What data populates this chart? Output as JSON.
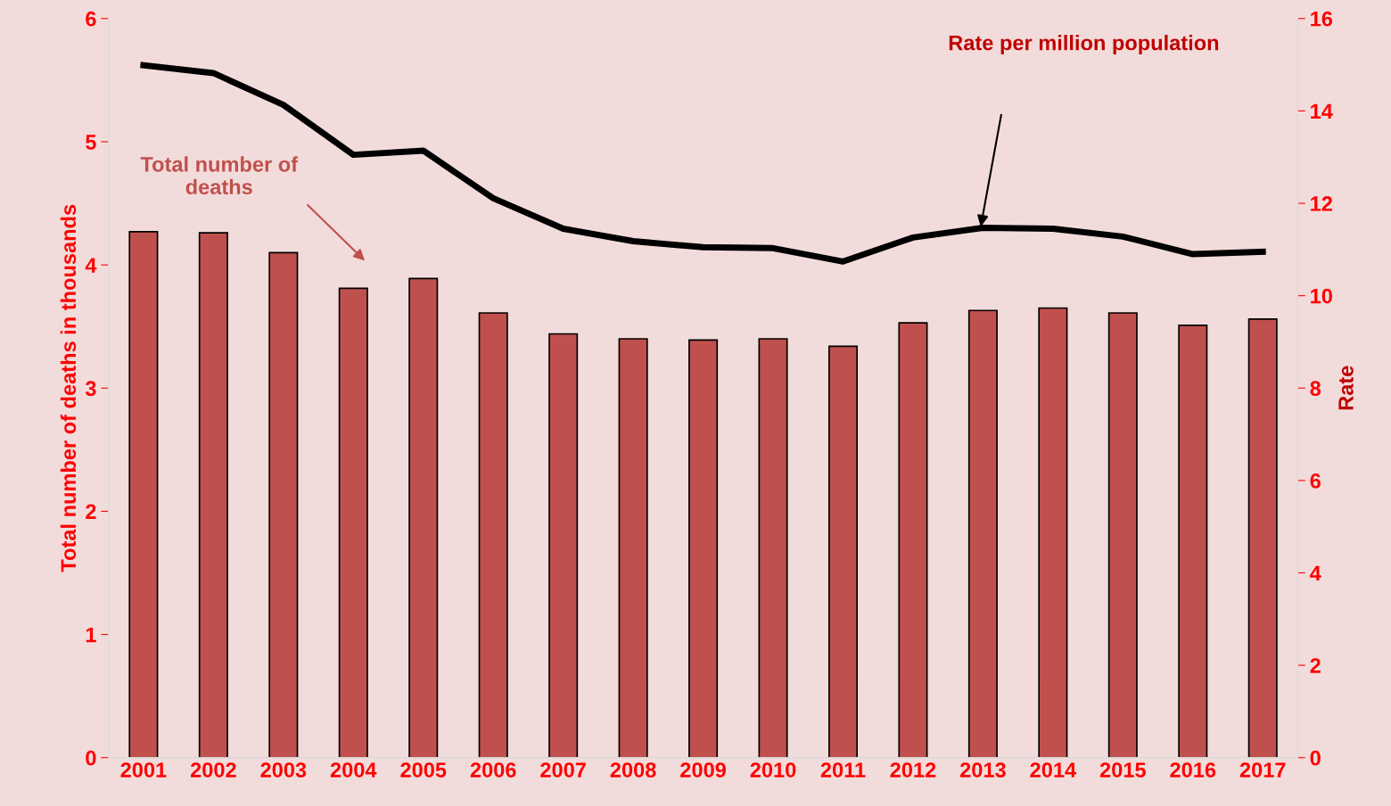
{
  "chart_data": {
    "type": "bar",
    "ylabel": "Total number of deaths in thousands",
    "y2label": "Rate",
    "categories": [
      "2001",
      "2002",
      "2003",
      "2004",
      "2005",
      "2006",
      "2007",
      "2008",
      "2009",
      "2010",
      "2011",
      "2012",
      "2013",
      "2014",
      "2015",
      "2016",
      "2017"
    ],
    "series": [
      {
        "color": "#c0504d",
        "values": [
          4.27,
          4.26,
          4.1,
          3.81,
          3.89,
          3.61,
          3.44,
          3.4,
          3.39,
          3.4,
          3.34,
          3.53,
          3.63,
          3.65,
          3.61,
          3.51,
          3.56
        ]
      },
      {
        "type": "line",
        "axis": "y2",
        "color": "#000000",
        "values": [
          14.99,
          14.82,
          14.13,
          13.05,
          13.14,
          12.11,
          11.45,
          11.18,
          11.05,
          11.03,
          10.74,
          11.26,
          11.47,
          11.45,
          11.28,
          10.9,
          10.95
        ]
      }
    ],
    "ylim": [
      0,
      6
    ],
    "yticks": [
      0,
      1,
      2,
      3,
      4,
      5,
      6
    ],
    "y2lim": [
      0,
      16
    ],
    "y2ticks": [
      0,
      2,
      4,
      6,
      8,
      10,
      12,
      14,
      16
    ],
    "annotations": [
      "Total number of\ndeaths",
      "Rate per million population"
    ],
    "grid": false,
    "legend": false,
    "marker": "none",
    "line_style": "solid"
  }
}
